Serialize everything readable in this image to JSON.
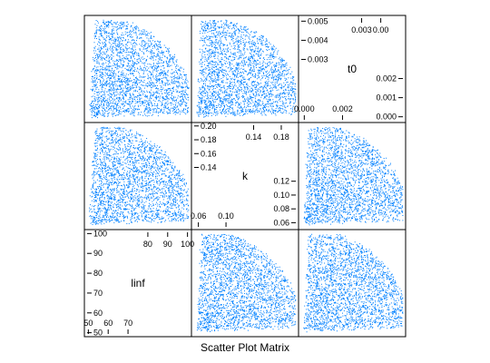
{
  "chart_data": {
    "type": "scatter",
    "title": "",
    "xlabel": "Scatter Plot Matrix",
    "ylabel": "",
    "point_color": "#0080ff",
    "variables": [
      {
        "name": "linf",
        "range": [
          48,
          102
        ],
        "ticks": [
          50,
          60,
          70,
          80,
          90,
          100
        ]
      },
      {
        "name": "k",
        "range": [
          0.05,
          0.205
        ],
        "ticks": [
          0.06,
          0.08,
          0.1,
          0.12,
          0.14,
          0.16,
          0.18,
          0.2
        ]
      },
      {
        "name": "t0",
        "range": [
          -0.0003,
          0.0053
        ],
        "ticks": [
          0.0,
          0.001,
          0.002,
          0.003,
          0.004,
          0.005
        ]
      }
    ],
    "diagonal_tick_labels": {
      "linf": {
        "lower": [
          "50",
          "60",
          "70"
        ],
        "upper": [
          "80",
          "90",
          "100"
        ],
        "left": [
          "50",
          "60",
          "70"
        ],
        "top": [
          "80",
          "90",
          "100"
        ]
      },
      "k": {
        "lower": [
          "0.06",
          "0.10"
        ],
        "upper": [
          "0.14",
          "0.18"
        ],
        "left": [
          "0.14",
          "0.16",
          "0.18",
          "0.20"
        ],
        "right": [
          "0.06",
          "0.08",
          "0.10",
          "0.12"
        ]
      },
      "t0": {
        "lower": [
          "0.000",
          "0.002"
        ],
        "upper": [
          "0.003",
          "0.00"
        ],
        "left": [
          "0.003",
          "0.004",
          "0.005"
        ],
        "right": [
          "0.000",
          "0.001",
          "0.002"
        ]
      }
    },
    "point_cloud": {
      "description_free": true,
      "n_points_per_panel": 2600,
      "shape": "wedge",
      "origin_fraction": [
        0.04,
        0.05
      ],
      "spread": 0.9
    },
    "grid": false,
    "legend": "none"
  }
}
